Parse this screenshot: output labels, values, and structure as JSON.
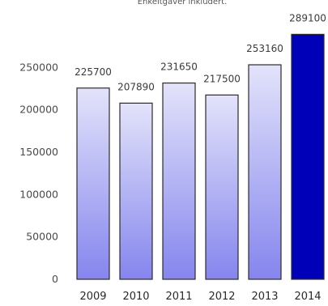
{
  "chart_data": {
    "type": "bar",
    "subtitle": "Enkeltgaver inkludert.",
    "categories": [
      "2009",
      "2010",
      "2011",
      "2012",
      "2013",
      "2014"
    ],
    "values": [
      225700,
      207890,
      231650,
      217500,
      253160,
      289100
    ],
    "data_labels": [
      "225700",
      "207890",
      "231650",
      "217500",
      "253160",
      "289100"
    ],
    "y_ticks": [
      "0",
      "50000",
      "100000",
      "150000",
      "200000",
      "250000"
    ],
    "ylim": [
      0,
      300000
    ],
    "grid": false,
    "highlighted_category": "2014",
    "colors": {
      "bar_top": "#e3e3fb",
      "bar_bottom": "#8585ee",
      "highlight": "#0000b8",
      "outline": "#2b2b2b"
    }
  }
}
